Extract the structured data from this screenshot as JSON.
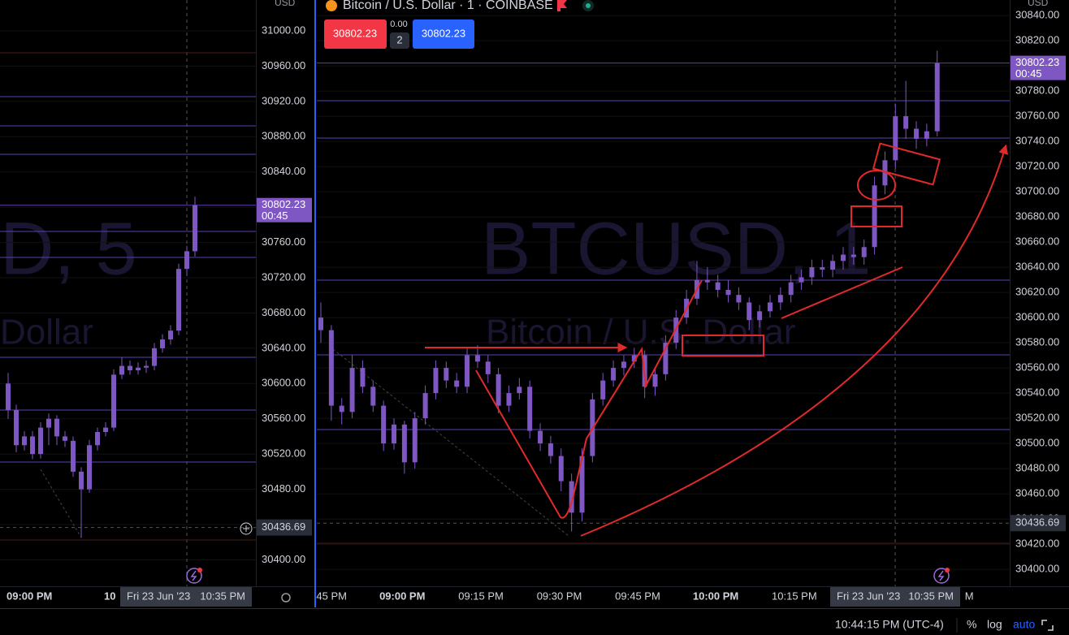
{
  "header": {
    "symbol_title": "Bitcoin / U.S. Dollar · 1 · COINBASE",
    "sell_price": "30802.23",
    "spread": "0.00",
    "quantity": "2",
    "buy_price": "30802.23"
  },
  "status_bar": {
    "time": "10:44:15 PM (UTC-4)",
    "percent": "%",
    "log": "log",
    "auto": "auto"
  },
  "chart_data": [
    {
      "type": "candlestick",
      "currency": "USD",
      "watermark": [
        "D, 5",
        "Dollar"
      ],
      "color": "#7e57c2",
      "grid": true,
      "ylim": [
        30370,
        31035
      ],
      "yticks": [
        {
          "value": 31000,
          "label": "31000.00"
        },
        {
          "value": 30960,
          "label": "30960.00"
        },
        {
          "value": 30920,
          "label": "30920.00"
        },
        {
          "value": 30880,
          "label": "30880.00"
        },
        {
          "value": 30840,
          "label": "30840.00"
        },
        {
          "value": 30800,
          "label": "30800.00"
        },
        {
          "value": 30760,
          "label": "30760.00"
        },
        {
          "value": 30720,
          "label": "30720.00"
        },
        {
          "value": 30680,
          "label": "30680.00"
        },
        {
          "value": 30640,
          "label": "30640.00"
        },
        {
          "value": 30600,
          "label": "30600.00"
        },
        {
          "value": 30560,
          "label": "30560.00"
        },
        {
          "value": 30520,
          "label": "30520.00"
        },
        {
          "value": 30480,
          "label": "30480.00"
        },
        {
          "value": 30440,
          "label": "30440.00"
        },
        {
          "value": 30400,
          "label": "30400.00"
        }
      ],
      "xticks": [
        {
          "value": 3,
          "label": "09:00 PM"
        },
        {
          "value": 15,
          "label": "10"
        }
      ],
      "candles": [
        [
          30600,
          30612,
          30560,
          30570
        ],
        [
          30570,
          30576,
          30522,
          30530
        ],
        [
          30530,
          30546,
          30524,
          30540
        ],
        [
          30540,
          30546,
          30514,
          30520
        ],
        [
          30520,
          30556,
          30515,
          30550
        ],
        [
          30550,
          30566,
          30530,
          30560
        ],
        [
          30560,
          30564,
          30530,
          30540
        ],
        [
          30540,
          30546,
          30528,
          30535
        ],
        [
          30535,
          30540,
          30494,
          30500
        ],
        [
          30500,
          30505,
          30425,
          30480
        ],
        [
          30480,
          30536,
          30476,
          30530
        ],
        [
          30530,
          30550,
          30524,
          30545
        ],
        [
          30545,
          30556,
          30540,
          30550
        ],
        [
          30550,
          30616,
          30546,
          30610
        ],
        [
          30610,
          30630,
          30605,
          30620
        ],
        [
          30620,
          30626,
          30610,
          30615
        ],
        [
          30615,
          30624,
          30610,
          30618
        ],
        [
          30618,
          30626,
          30612,
          30620
        ],
        [
          30620,
          30646,
          30615,
          30640
        ],
        [
          30640,
          30656,
          30635,
          30650
        ],
        [
          30650,
          30666,
          30644,
          30660
        ],
        [
          30660,
          30736,
          30655,
          30730
        ],
        [
          30730,
          30756,
          30722,
          30750
        ],
        [
          30750,
          30812,
          30744,
          30802.23
        ]
      ],
      "last_price": 30802.23,
      "countdown": "00:45",
      "crosshair": {
        "price": 30436.69,
        "date": "Fri 23 Jun '23",
        "time": "10:35 PM"
      }
    },
    {
      "type": "candlestick",
      "currency": "USD",
      "watermark": [
        "BTCUSD, 1",
        "Bitcoin / U.S. Dollar"
      ],
      "color": "#7e57c2",
      "grid": true,
      "ylim": [
        30386.5,
        30852.3
      ],
      "yticks": [
        {
          "value": 30840,
          "label": "30840.00"
        },
        {
          "value": 30820,
          "label": "30820.00"
        },
        {
          "value": 30800,
          "label": "30800.00"
        },
        {
          "value": 30780,
          "label": "30780.00"
        },
        {
          "value": 30760,
          "label": "30760.00"
        },
        {
          "value": 30740,
          "label": "30740.00"
        },
        {
          "value": 30720,
          "label": "30720.00"
        },
        {
          "value": 30700,
          "label": "30700.00"
        },
        {
          "value": 30680,
          "label": "30680.00"
        },
        {
          "value": 30660,
          "label": "30660.00"
        },
        {
          "value": 30640,
          "label": "30640.00"
        },
        {
          "value": 30620,
          "label": "30620.00"
        },
        {
          "value": 30600,
          "label": "30600.00"
        },
        {
          "value": 30580,
          "label": "30580.00"
        },
        {
          "value": 30560,
          "label": "30560.00"
        },
        {
          "value": 30540,
          "label": "30540.00"
        },
        {
          "value": 30520,
          "label": "30520.00"
        },
        {
          "value": 30500,
          "label": "30500.00"
        },
        {
          "value": 30480,
          "label": "30480.00"
        },
        {
          "value": 30460,
          "label": "30460.00"
        },
        {
          "value": 30440,
          "label": "30440.00"
        },
        {
          "value": 30420,
          "label": "30420.00"
        },
        {
          "value": 30400,
          "label": "30400.00"
        }
      ],
      "xticks": [
        {
          "value": 0,
          "label": "45 PM"
        },
        {
          "value": 7.5,
          "label": "09:00 PM"
        },
        {
          "value": 15,
          "label": "09:15 PM"
        },
        {
          "value": 22.5,
          "label": "09:30 PM"
        },
        {
          "value": 30,
          "label": "09:45 PM"
        },
        {
          "value": 37.5,
          "label": "10:00 PM"
        },
        {
          "value": 45,
          "label": "10:15 PM"
        },
        {
          "value": 60,
          "label": "M"
        }
      ],
      "candles": [
        [
          30600,
          30612,
          30580,
          30590
        ],
        [
          30590,
          30594,
          30518,
          30530
        ],
        [
          30530,
          30536,
          30515,
          30525
        ],
        [
          30525,
          30570,
          30520,
          30560
        ],
        [
          30560,
          30566,
          30540,
          30545
        ],
        [
          30545,
          30550,
          30525,
          30530
        ],
        [
          30530,
          30534,
          30494,
          30500
        ],
        [
          30500,
          30520,
          30495,
          30515
        ],
        [
          30515,
          30518,
          30476,
          30485
        ],
        [
          30485,
          30525,
          30480,
          30520
        ],
        [
          30520,
          30546,
          30515,
          30540
        ],
        [
          30540,
          30566,
          30535,
          30560
        ],
        [
          30560,
          30565,
          30544,
          30550
        ],
        [
          30550,
          30556,
          30540,
          30545
        ],
        [
          30545,
          30576,
          30540,
          30570
        ],
        [
          30570,
          30578,
          30560,
          30565
        ],
        [
          30565,
          30570,
          30548,
          30555
        ],
        [
          30555,
          30560,
          30524,
          30530
        ],
        [
          30530,
          30546,
          30525,
          30540
        ],
        [
          30540,
          30552,
          30535,
          30545
        ],
        [
          30545,
          30550,
          30504,
          30510
        ],
        [
          30510,
          30516,
          30494,
          30500
        ],
        [
          30500,
          30506,
          30484,
          30490
        ],
        [
          30490,
          30496,
          30462,
          30470
        ],
        [
          30470,
          30476,
          30430,
          30445
        ],
        [
          30445,
          30496,
          30438,
          30490
        ],
        [
          30490,
          30540,
          30485,
          30535
        ],
        [
          30535,
          30556,
          30530,
          30550
        ],
        [
          30550,
          30566,
          30545,
          30560
        ],
        [
          30560,
          30570,
          30554,
          30565
        ],
        [
          30565,
          30576,
          30560,
          30570
        ],
        [
          30570,
          30574,
          30536,
          30545
        ],
        [
          30545,
          30560,
          30538,
          30555
        ],
        [
          30555,
          30586,
          30550,
          30580
        ],
        [
          30580,
          30606,
          30575,
          30600
        ],
        [
          30600,
          30622,
          30595,
          30615
        ],
        [
          30615,
          30645,
          30610,
          30630
        ],
        [
          30630,
          30640,
          30622,
          30628
        ],
        [
          30628,
          30634,
          30616,
          30622
        ],
        [
          30622,
          30630,
          30612,
          30618
        ],
        [
          30618,
          30624,
          30606,
          30612
        ],
        [
          30612,
          30616,
          30590,
          30598
        ],
        [
          30598,
          30610,
          30592,
          30605
        ],
        [
          30605,
          30618,
          30600,
          30612
        ],
        [
          30612,
          30624,
          30606,
          30618
        ],
        [
          30618,
          30634,
          30612,
          30628
        ],
        [
          30628,
          30638,
          30622,
          30632
        ],
        [
          30632,
          30646,
          30626,
          30640
        ],
        [
          30640,
          30646,
          30632,
          30638
        ],
        [
          30638,
          30650,
          30632,
          30645
        ],
        [
          30645,
          30656,
          30638,
          30650
        ],
        [
          30650,
          30656,
          30642,
          30648
        ],
        [
          30648,
          30662,
          30642,
          30656
        ],
        [
          30656,
          30712,
          30650,
          30705
        ],
        [
          30705,
          30732,
          30698,
          30725
        ],
        [
          30725,
          30770,
          30718,
          30760
        ],
        [
          30760,
          30788,
          30742,
          30750
        ],
        [
          30750,
          30756,
          30734,
          30742
        ],
        [
          30742,
          30754,
          30736,
          30748
        ],
        [
          30748,
          30812,
          30744,
          30802.23
        ]
      ],
      "last_price": 30802.23,
      "countdown": "00:45",
      "crosshair": {
        "price": 30436.69,
        "date": "Fri 23 Jun '23",
        "time": "10:35 PM"
      }
    }
  ]
}
